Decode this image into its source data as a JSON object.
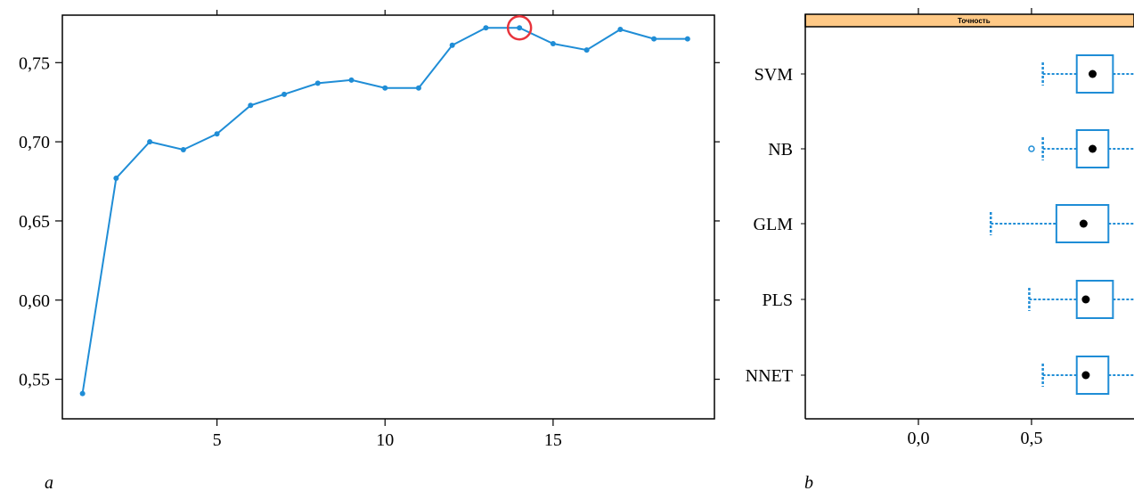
{
  "panel_labels": [
    "a",
    "b"
  ],
  "colors": {
    "series": "#1f8dd6",
    "highlight": "#e8343c",
    "strip": "#ffc986",
    "axis": "#000000",
    "median": "#000000"
  },
  "chart_data": [
    {
      "type": "line",
      "title": "",
      "xlabel": "",
      "ylabel": "",
      "x": [
        1,
        2,
        3,
        4,
        5,
        6,
        7,
        8,
        9,
        10,
        11,
        12,
        13,
        14,
        15,
        16,
        17,
        18,
        19
      ],
      "series": [
        {
          "values": [
            0.541,
            0.677,
            0.7,
            0.695,
            0.705,
            0.723,
            0.73,
            0.737,
            0.739,
            0.734,
            0.734,
            0.761,
            0.772,
            0.772,
            0.762,
            0.758,
            0.771,
            0.765,
            0.765
          ]
        }
      ],
      "highlight_x": 14,
      "xlim": [
        0.4,
        19.8
      ],
      "ylim": [
        0.525,
        0.78
      ],
      "xticks": [
        5,
        10,
        15
      ],
      "xtick_labels": [
        "5",
        "10",
        "15"
      ],
      "yticks": [
        0.55,
        0.6,
        0.65,
        0.7,
        0.75
      ],
      "ytick_labels": [
        "0,55",
        "0,60",
        "0,65",
        "0,70",
        "0,75"
      ],
      "grid": false
    },
    {
      "type": "box",
      "strip_label": "Точность",
      "categories": [
        "SVM",
        "NB",
        "GLM",
        "PLS",
        "NNET"
      ],
      "boxes": [
        {
          "whisker_low": 0.55,
          "q1": 0.7,
          "median": 0.77,
          "q3": 0.86,
          "whisker_high": 0.96,
          "outliers": []
        },
        {
          "whisker_low": 0.55,
          "q1": 0.7,
          "median": 0.77,
          "q3": 0.84,
          "whisker_high": 0.96,
          "outliers": [
            0.5
          ]
        },
        {
          "whisker_low": 0.32,
          "q1": 0.61,
          "median": 0.73,
          "q3": 0.84,
          "whisker_high": 0.96,
          "outliers": []
        },
        {
          "whisker_low": 0.49,
          "q1": 0.7,
          "median": 0.74,
          "q3": 0.86,
          "whisker_high": 0.96,
          "outliers": []
        },
        {
          "whisker_low": 0.55,
          "q1": 0.7,
          "median": 0.74,
          "q3": 0.84,
          "whisker_high": 0.96,
          "outliers": []
        }
      ],
      "xlim": [
        -0.5,
        1.02
      ],
      "xticks": [
        0.0,
        0.5
      ],
      "xtick_labels": [
        "0,0",
        "0,5"
      ],
      "grid": false
    }
  ]
}
